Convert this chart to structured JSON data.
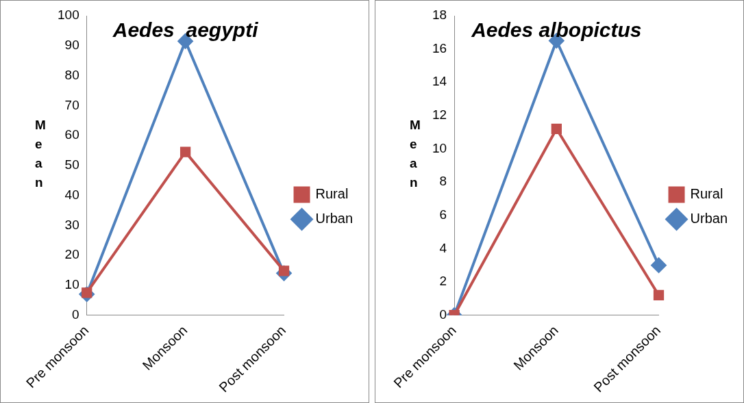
{
  "chart_data": [
    {
      "type": "line",
      "title": "Aedes  aegypti",
      "ylabel": "Mean",
      "categories": [
        "Pre monsoon",
        "Monsoon",
        "Post monsoon"
      ],
      "ylim": [
        0,
        100
      ],
      "yticks": [
        0,
        10,
        20,
        30,
        40,
        50,
        60,
        70,
        80,
        90,
        100
      ],
      "grid": false,
      "legend": "right",
      "series": [
        {
          "name": "Urban",
          "color": "#4f81bd",
          "marker": "diamond",
          "values": [
            7,
            91.5,
            14
          ]
        },
        {
          "name": "Rural",
          "color": "#c0504d",
          "marker": "square",
          "values": [
            7.5,
            54.5,
            14.8
          ]
        }
      ]
    },
    {
      "type": "line",
      "title": "Aedes albopictus",
      "ylabel": "Mean",
      "categories": [
        "Pre monsoon",
        "Monsoon",
        "Post monsoon"
      ],
      "ylim": [
        0,
        18
      ],
      "yticks": [
        0,
        2,
        4,
        6,
        8,
        10,
        12,
        14,
        16,
        18
      ],
      "grid": false,
      "legend": "right",
      "series": [
        {
          "name": "Urban",
          "color": "#4f81bd",
          "marker": "diamond",
          "values": [
            0,
            16.5,
            3
          ]
        },
        {
          "name": "Rural",
          "color": "#c0504d",
          "marker": "square",
          "values": [
            0,
            11.2,
            1.2
          ]
        }
      ]
    }
  ]
}
